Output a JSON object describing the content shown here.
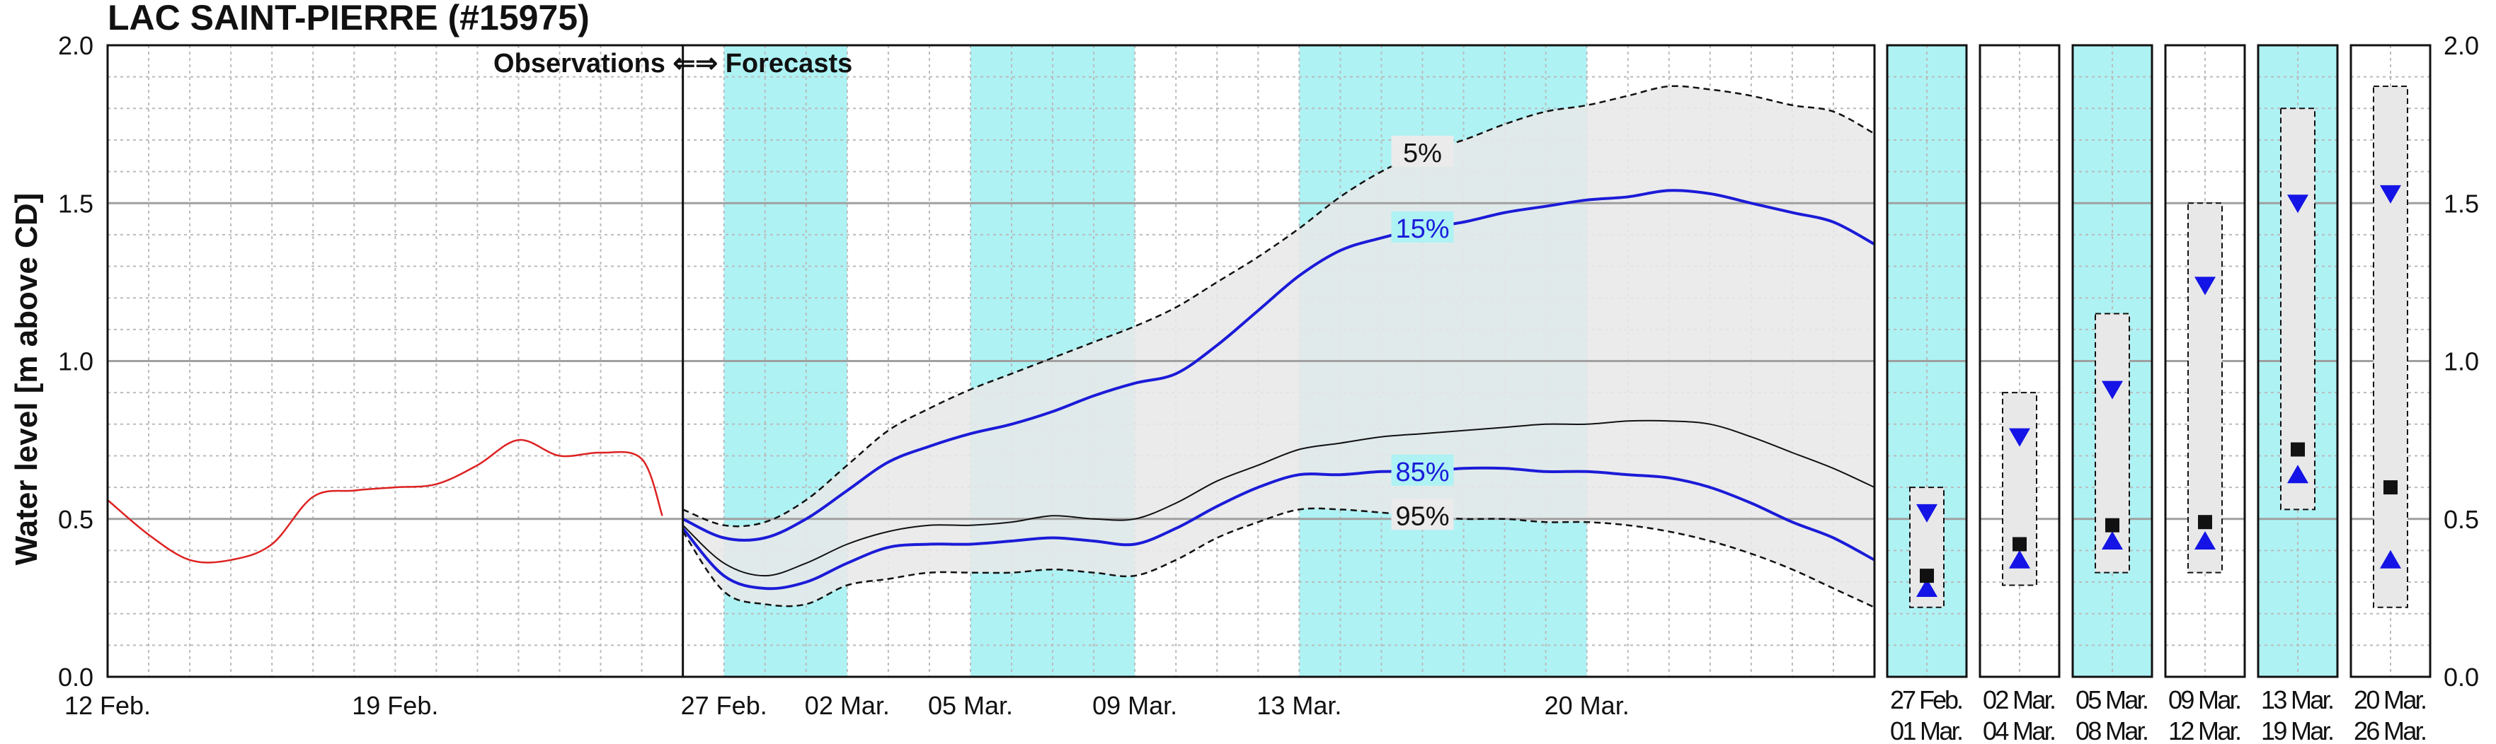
{
  "chart_data": {
    "type": "line",
    "title": "LAC SAINT-PIERRE (#15975)",
    "ylabel": "Water level [m above CD]",
    "ylim": [
      0.0,
      2.0
    ],
    "yticks": [
      "0.0",
      "0.5",
      "1.0",
      "1.5",
      "2.0"
    ],
    "xlim": [
      "2018-02-12",
      "2018-03-27"
    ],
    "forecast_start": "2018-02-26",
    "divider_text": "Observations ⇐⇒ Forecasts",
    "x_tick_labels": [
      {
        "date": "2018-02-12",
        "label": "12 Feb."
      },
      {
        "date": "2018-02-19",
        "label": "19 Feb."
      },
      {
        "date": "2018-02-27",
        "label": "27 Feb."
      },
      {
        "date": "2018-03-02",
        "label": "02 Mar."
      },
      {
        "date": "2018-03-05",
        "label": "05 Mar."
      },
      {
        "date": "2018-03-09",
        "label": "09 Mar."
      },
      {
        "date": "2018-03-13",
        "label": "13 Mar."
      },
      {
        "date": "2018-03-20",
        "label": "20 Mar."
      }
    ],
    "highlight_periods": [
      [
        "2018-02-27",
        "2018-03-02"
      ],
      [
        "2018-03-05",
        "2018-03-09"
      ],
      [
        "2018-03-13",
        "2018-03-20"
      ]
    ],
    "colors": {
      "observed": "#dd2222",
      "quantile": "#1b1bd8",
      "median": "#111111",
      "band": "#e8e8e8",
      "highlight": "#aef2f4",
      "grid": "#bbbbbb",
      "marker_triangle": "#1414e6",
      "marker_square": "#111111"
    },
    "observed": {
      "x": [
        "2018-02-12",
        "2018-02-13",
        "2018-02-14",
        "2018-02-15",
        "2018-02-16",
        "2018-02-17",
        "2018-02-18",
        "2018-02-19",
        "2018-02-20",
        "2018-02-21",
        "2018-02-22",
        "2018-02-23",
        "2018-02-24",
        "2018-02-25",
        "2018-02-25.5"
      ],
      "y": [
        0.56,
        0.45,
        0.37,
        0.37,
        0.42,
        0.57,
        0.59,
        0.6,
        0.61,
        0.67,
        0.75,
        0.7,
        0.71,
        0.69,
        0.51
      ]
    },
    "forecast_x": [
      "2018-02-26",
      "2018-02-27",
      "2018-02-28",
      "2018-03-01",
      "2018-03-02",
      "2018-03-03",
      "2018-03-04",
      "2018-03-05",
      "2018-03-06",
      "2018-03-07",
      "2018-03-08",
      "2018-03-09",
      "2018-03-10",
      "2018-03-11",
      "2018-03-12",
      "2018-03-13",
      "2018-03-14",
      "2018-03-15",
      "2018-03-16",
      "2018-03-17",
      "2018-03-18",
      "2018-03-19",
      "2018-03-20",
      "2018-03-21",
      "2018-03-22",
      "2018-03-23",
      "2018-03-24",
      "2018-03-25",
      "2018-03-26",
      "2018-03-27"
    ],
    "series": [
      {
        "name": "5%",
        "y": [
          0.53,
          0.48,
          0.49,
          0.56,
          0.67,
          0.78,
          0.85,
          0.91,
          0.96,
          1.01,
          1.06,
          1.11,
          1.17,
          1.25,
          1.33,
          1.42,
          1.52,
          1.6,
          1.66,
          1.7,
          1.75,
          1.79,
          1.81,
          1.84,
          1.87,
          1.86,
          1.84,
          1.81,
          1.79,
          1.72
        ]
      },
      {
        "name": "15%",
        "y": [
          0.5,
          0.44,
          0.44,
          0.5,
          0.59,
          0.68,
          0.73,
          0.77,
          0.8,
          0.84,
          0.89,
          0.93,
          0.96,
          1.05,
          1.16,
          1.27,
          1.35,
          1.39,
          1.42,
          1.44,
          1.47,
          1.49,
          1.51,
          1.52,
          1.54,
          1.53,
          1.5,
          1.47,
          1.44,
          1.37
        ]
      },
      {
        "name": "50%",
        "y": [
          0.48,
          0.36,
          0.32,
          0.36,
          0.42,
          0.46,
          0.48,
          0.48,
          0.49,
          0.51,
          0.5,
          0.5,
          0.55,
          0.62,
          0.67,
          0.72,
          0.74,
          0.76,
          0.77,
          0.78,
          0.79,
          0.8,
          0.8,
          0.81,
          0.81,
          0.8,
          0.76,
          0.71,
          0.66,
          0.6
        ]
      },
      {
        "name": "85%",
        "y": [
          0.47,
          0.32,
          0.28,
          0.3,
          0.36,
          0.41,
          0.42,
          0.42,
          0.43,
          0.44,
          0.43,
          0.42,
          0.47,
          0.54,
          0.6,
          0.64,
          0.64,
          0.65,
          0.65,
          0.66,
          0.66,
          0.65,
          0.65,
          0.64,
          0.63,
          0.6,
          0.55,
          0.49,
          0.44,
          0.37
        ]
      },
      {
        "name": "95%",
        "y": [
          0.46,
          0.27,
          0.23,
          0.23,
          0.29,
          0.31,
          0.33,
          0.33,
          0.33,
          0.34,
          0.33,
          0.32,
          0.37,
          0.44,
          0.49,
          0.53,
          0.53,
          0.52,
          0.51,
          0.5,
          0.5,
          0.49,
          0.49,
          0.48,
          0.46,
          0.43,
          0.39,
          0.34,
          0.28,
          0.22
        ]
      }
    ],
    "quantile_labels": [
      {
        "series": "5%",
        "text": "5%",
        "date": "2018-03-16"
      },
      {
        "series": "15%",
        "text": "15%",
        "date": "2018-03-16"
      },
      {
        "series": "85%",
        "text": "85%",
        "date": "2018-03-16"
      },
      {
        "series": "95%",
        "text": "95%",
        "date": "2018-03-16"
      }
    ],
    "weekly_panels": [
      {
        "label1": "27 Feb.",
        "label2": "01 Mar.",
        "highlight": true,
        "box_low": 0.22,
        "box_high": 0.6,
        "tri_down": 0.52,
        "square": 0.32,
        "tri_up": 0.28
      },
      {
        "label1": "02 Mar.",
        "label2": "04 Mar.",
        "highlight": false,
        "box_low": 0.29,
        "box_high": 0.9,
        "tri_down": 0.76,
        "square": 0.42,
        "tri_up": 0.37
      },
      {
        "label1": "05 Mar.",
        "label2": "08 Mar.",
        "highlight": true,
        "box_low": 0.33,
        "box_high": 1.15,
        "tri_down": 0.91,
        "square": 0.48,
        "tri_up": 0.43
      },
      {
        "label1": "09 Mar.",
        "label2": "12 Mar.",
        "highlight": false,
        "box_low": 0.33,
        "box_high": 1.5,
        "tri_down": 1.24,
        "square": 0.49,
        "tri_up": 0.43
      },
      {
        "label1": "13 Mar.",
        "label2": "19 Mar.",
        "highlight": true,
        "box_low": 0.53,
        "box_high": 1.8,
        "tri_down": 1.5,
        "square": 0.72,
        "tri_up": 0.64
      },
      {
        "label1": "20 Mar.",
        "label2": "26 Mar.",
        "highlight": false,
        "box_low": 0.22,
        "box_high": 1.87,
        "tri_down": 1.53,
        "square": 0.6,
        "tri_up": 0.37
      }
    ]
  }
}
